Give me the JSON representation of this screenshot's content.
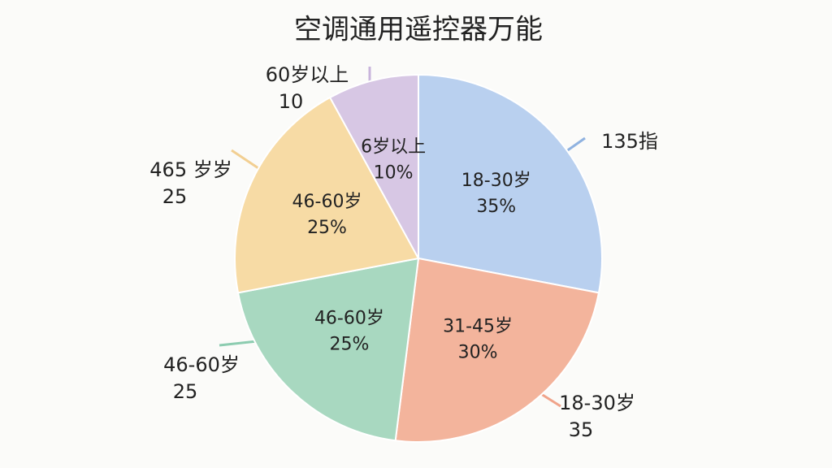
{
  "chart_data": {
    "type": "pie",
    "title": "空调通用遥控器万能",
    "categories": [
      "18-30岁",
      "31-45岁",
      "46-60岁",
      "46-60岁",
      "6岁以上"
    ],
    "values": [
      35,
      30,
      25,
      25,
      10
    ],
    "value_labels": [
      "35%",
      "30%",
      "25%",
      "25%",
      "10%"
    ],
    "colors": [
      "#b9d0ef",
      "#f3b49c",
      "#a8d8c0",
      "#f7dba5",
      "#d7c7e4"
    ],
    "annotations": [
      {
        "label": "135指"
      },
      {
        "label": "18-30岁",
        "value": 35
      },
      {
        "label": "46-60岁",
        "value": 25
      },
      {
        "label": "465 岁岁",
        "value": 25
      },
      {
        "label": "60岁以上",
        "value": 10
      }
    ]
  }
}
